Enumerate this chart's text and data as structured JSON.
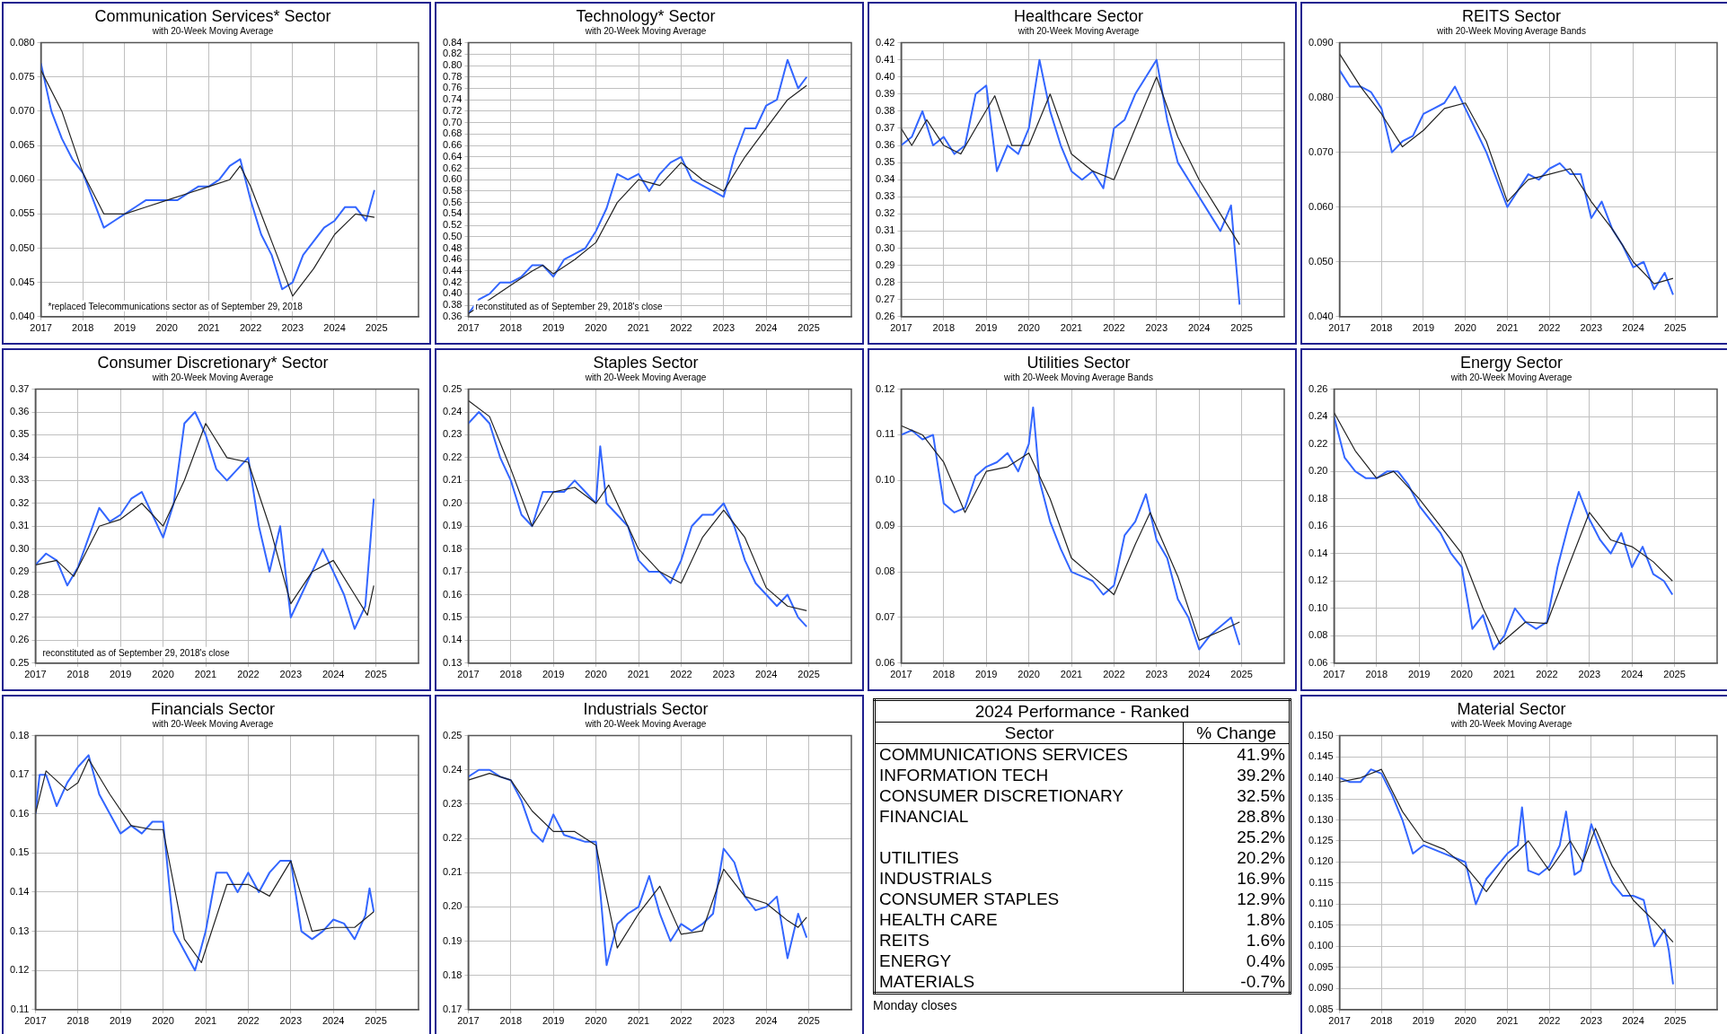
{
  "chart_data": [
    {
      "type": "line",
      "title": "Communication Services* Sector",
      "subtitle": "with 20-Week Moving Average",
      "xlim": [
        2017,
        2026
      ],
      "xticks": [
        2017,
        2018,
        2019,
        2020,
        2021,
        2022,
        2023,
        2024,
        2025
      ],
      "ylim": [
        0.04,
        0.08
      ],
      "yticks": [
        {
          "value": 0.04,
          "label": "0.040"
        },
        0.045,
        {
          "value": 0.05,
          "label": "0.050"
        },
        0.055,
        {
          "value": 0.06,
          "label": "0.060"
        },
        0.065,
        {
          "value": 0.07,
          "label": "0.070"
        },
        0.075,
        {
          "value": 0.08,
          "label": "0.080"
        }
      ],
      "grid": true,
      "marker": "none",
      "annotations": [
        "*replaced Telecommunications sector as of September 29, 2018"
      ],
      "series": [
        {
          "color": "#3366ff",
          "x": [
            2017,
            2017.25,
            2017.5,
            2017.75,
            2018,
            2018.25,
            2018.5,
            2018.75,
            2019,
            2019.25,
            2019.5,
            2019.75,
            2020,
            2020.25,
            2020.5,
            2020.75,
            2021,
            2021.25,
            2021.5,
            2021.75,
            2022,
            2022.25,
            2022.5,
            2022.75,
            2023,
            2023.25,
            2023.5,
            2023.75,
            2024,
            2024.25,
            2024.5,
            2024.75,
            2024.95
          ],
          "values": [
            0.077,
            0.07,
            0.066,
            0.063,
            0.061,
            0.057,
            0.053,
            0.054,
            0.055,
            0.056,
            0.057,
            0.057,
            0.057,
            0.057,
            0.058,
            0.059,
            0.059,
            0.06,
            0.062,
            0.063,
            0.057,
            0.052,
            0.049,
            0.044,
            0.045,
            0.049,
            0.051,
            0.053,
            0.054,
            0.056,
            0.056,
            0.054,
            0.0585
          ]
        },
        {
          "color": "#222222",
          "x": [
            2017,
            2017.5,
            2018,
            2018.5,
            2019,
            2019.5,
            2020,
            2020.5,
            2021,
            2021.5,
            2021.75,
            2022,
            2022.5,
            2023,
            2023.5,
            2024,
            2024.5,
            2024.95
          ],
          "values": [
            0.076,
            0.07,
            0.061,
            0.055,
            0.055,
            0.056,
            0.057,
            0.058,
            0.059,
            0.06,
            0.062,
            0.059,
            0.051,
            0.043,
            0.047,
            0.052,
            0.055,
            0.0545
          ]
        }
      ]
    },
    {
      "type": "line",
      "title": "Technology* Sector",
      "subtitle": "with 20-Week Moving Average",
      "xlim": [
        2017,
        2026
      ],
      "xticks": [
        2017,
        2018,
        2019,
        2020,
        2021,
        2022,
        2023,
        2024,
        2025
      ],
      "ylim": [
        0.36,
        0.84
      ],
      "yticks": [
        0.36,
        0.38,
        {
          "value": 0.4,
          "label": "0.40"
        },
        0.42,
        0.44,
        0.46,
        0.48,
        {
          "value": 0.5,
          "label": "0.50"
        },
        0.52,
        0.54,
        0.56,
        0.58,
        {
          "value": 0.6,
          "label": "0.60"
        },
        0.62,
        0.64,
        0.66,
        0.68,
        {
          "value": 0.7,
          "label": "0.70"
        },
        0.72,
        0.74,
        0.76,
        0.78,
        {
          "value": 0.8,
          "label": "0.80"
        },
        0.82,
        0.84
      ],
      "grid": true,
      "marker": "none",
      "annotations": [
        "reconstituted as of September 29, 2018's close"
      ],
      "series": [
        {
          "color": "#3366ff",
          "x": [
            2017,
            2017.25,
            2017.5,
            2017.75,
            2018,
            2018.25,
            2018.5,
            2018.75,
            2019,
            2019.25,
            2019.5,
            2019.75,
            2020,
            2020.25,
            2020.5,
            2020.75,
            2021,
            2021.25,
            2021.5,
            2021.75,
            2022,
            2022.25,
            2022.5,
            2022.75,
            2023,
            2023.25,
            2023.5,
            2023.75,
            2024,
            2024.25,
            2024.5,
            2024.75,
            2024.95
          ],
          "values": [
            0.365,
            0.39,
            0.4,
            0.42,
            0.42,
            0.43,
            0.45,
            0.45,
            0.43,
            0.46,
            0.47,
            0.48,
            0.51,
            0.55,
            0.61,
            0.6,
            0.61,
            0.58,
            0.61,
            0.63,
            0.64,
            0.6,
            0.59,
            0.58,
            0.57,
            0.64,
            0.69,
            0.69,
            0.73,
            0.74,
            0.81,
            0.76,
            0.78
          ]
        },
        {
          "color": "#222222",
          "x": [
            2017,
            2017.5,
            2018,
            2018.5,
            2018.75,
            2019,
            2019.5,
            2020,
            2020.5,
            2021,
            2021.5,
            2022,
            2022.5,
            2023,
            2023.5,
            2024,
            2024.5,
            2024.95
          ],
          "values": [
            0.365,
            0.39,
            0.415,
            0.44,
            0.45,
            0.435,
            0.46,
            0.49,
            0.56,
            0.6,
            0.59,
            0.63,
            0.6,
            0.58,
            0.64,
            0.69,
            0.74,
            0.765
          ]
        }
      ]
    },
    {
      "type": "line",
      "title": "Healthcare Sector",
      "subtitle": "with 20-Week Moving Average",
      "xlim": [
        2017,
        2026
      ],
      "xticks": [
        2017,
        2018,
        2019,
        2020,
        2021,
        2022,
        2023,
        2024,
        2025
      ],
      "ylim": [
        0.26,
        0.42
      ],
      "yticks": [
        0.26,
        0.27,
        0.28,
        0.29,
        {
          "value": 0.3,
          "label": "0.30"
        },
        0.31,
        0.32,
        0.33,
        0.34,
        0.35,
        0.36,
        0.37,
        0.38,
        0.39,
        {
          "value": 0.4,
          "label": "0.40"
        },
        0.41,
        0.42
      ],
      "grid": true,
      "marker": "none",
      "series": [
        {
          "color": "#3366ff",
          "x": [
            2017,
            2017.25,
            2017.5,
            2017.75,
            2018,
            2018.25,
            2018.5,
            2018.75,
            2019,
            2019.25,
            2019.5,
            2019.75,
            2020,
            2020.25,
            2020.5,
            2020.75,
            2021,
            2021.25,
            2021.5,
            2021.75,
            2022,
            2022.25,
            2022.5,
            2022.75,
            2023,
            2023.25,
            2023.5,
            2023.75,
            2024,
            2024.25,
            2024.5,
            2024.75,
            2024.95
          ],
          "values": [
            0.36,
            0.365,
            0.38,
            0.36,
            0.365,
            0.355,
            0.36,
            0.39,
            0.395,
            0.345,
            0.36,
            0.355,
            0.37,
            0.41,
            0.38,
            0.36,
            0.345,
            0.34,
            0.345,
            0.335,
            0.37,
            0.375,
            0.39,
            0.4,
            0.41,
            0.375,
            0.35,
            0.34,
            0.33,
            0.32,
            0.31,
            0.325,
            0.267
          ]
        },
        {
          "color": "#222222",
          "x": [
            2017,
            2017.25,
            2017.6,
            2018,
            2018.4,
            2018.75,
            2019.2,
            2019.6,
            2020,
            2020.5,
            2021,
            2021.5,
            2022,
            2022.5,
            2023,
            2023.5,
            2024,
            2024.5,
            2024.95
          ],
          "values": [
            0.37,
            0.36,
            0.375,
            0.36,
            0.355,
            0.37,
            0.389,
            0.36,
            0.36,
            0.39,
            0.355,
            0.345,
            0.34,
            0.37,
            0.4,
            0.365,
            0.34,
            0.32,
            0.302
          ]
        }
      ]
    },
    {
      "type": "line",
      "title": "REITS Sector",
      "subtitle": "with 20-Week Moving Average Bands",
      "xlim": [
        2017,
        2026
      ],
      "xticks": [
        2017,
        2018,
        2019,
        2020,
        2021,
        2022,
        2023,
        2024,
        2025
      ],
      "ylim": [
        0.04,
        0.09
      ],
      "yticks": [
        {
          "value": 0.04,
          "label": "0.040"
        },
        {
          "value": 0.05,
          "label": "0.050"
        },
        {
          "value": 0.06,
          "label": "0.060"
        },
        {
          "value": 0.07,
          "label": "0.070"
        },
        {
          "value": 0.08,
          "label": "0.080"
        },
        {
          "value": 0.09,
          "label": "0.090"
        }
      ],
      "grid": true,
      "marker": "none",
      "series": [
        {
          "color": "#3366ff",
          "x": [
            2017,
            2017.25,
            2017.5,
            2017.75,
            2018,
            2018.25,
            2018.5,
            2018.75,
            2019,
            2019.25,
            2019.5,
            2019.75,
            2020,
            2020.25,
            2020.5,
            2020.75,
            2021,
            2021.25,
            2021.5,
            2021.75,
            2022,
            2022.25,
            2022.5,
            2022.75,
            2023,
            2023.25,
            2023.5,
            2023.75,
            2024,
            2024.25,
            2024.5,
            2024.75,
            2024.95
          ],
          "values": [
            0.085,
            0.082,
            0.082,
            0.081,
            0.078,
            0.07,
            0.072,
            0.073,
            0.077,
            0.078,
            0.079,
            0.082,
            0.078,
            0.074,
            0.07,
            0.065,
            0.06,
            0.063,
            0.066,
            0.065,
            0.067,
            0.068,
            0.066,
            0.066,
            0.058,
            0.061,
            0.056,
            0.053,
            0.049,
            0.05,
            0.045,
            0.048,
            0.044
          ]
        },
        {
          "color": "#222222",
          "x": [
            2017,
            2017.5,
            2018,
            2018.5,
            2019,
            2019.5,
            2020,
            2020.5,
            2021,
            2021.5,
            2022,
            2022.5,
            2023,
            2023.5,
            2024,
            2024.5,
            2024.95
          ],
          "values": [
            0.088,
            0.082,
            0.077,
            0.071,
            0.074,
            0.078,
            0.079,
            0.072,
            0.061,
            0.065,
            0.066,
            0.067,
            0.061,
            0.056,
            0.05,
            0.046,
            0.047
          ]
        }
      ]
    },
    {
      "type": "line",
      "title": "Consumer Discretionary* Sector",
      "subtitle": "with 20-Week Moving Average",
      "xlim": [
        2017,
        2026
      ],
      "xticks": [
        2017,
        2018,
        2019,
        2020,
        2021,
        2022,
        2023,
        2024,
        2025
      ],
      "ylim": [
        0.25,
        0.37
      ],
      "yticks": [
        0.25,
        0.26,
        0.27,
        0.28,
        0.29,
        {
          "value": 0.3,
          "label": "0.30"
        },
        0.31,
        0.32,
        0.33,
        0.34,
        0.35,
        0.36,
        0.37
      ],
      "grid": true,
      "marker": "none",
      "annotations": [
        "reconstituted as of September 29, 2018's close"
      ],
      "series": [
        {
          "color": "#3366ff",
          "x": [
            2017,
            2017.25,
            2017.5,
            2017.75,
            2018,
            2018.25,
            2018.5,
            2018.75,
            2019,
            2019.25,
            2019.5,
            2019.75,
            2020,
            2020.25,
            2020.5,
            2020.75,
            2021,
            2021.25,
            2021.5,
            2021.75,
            2022,
            2022.25,
            2022.5,
            2022.75,
            2023,
            2023.25,
            2023.5,
            2023.75,
            2024,
            2024.25,
            2024.5,
            2024.75,
            2024.95
          ],
          "values": [
            0.293,
            0.298,
            0.295,
            0.284,
            0.292,
            0.305,
            0.318,
            0.312,
            0.315,
            0.322,
            0.325,
            0.315,
            0.305,
            0.32,
            0.355,
            0.36,
            0.35,
            0.335,
            0.33,
            0.335,
            0.34,
            0.31,
            0.29,
            0.31,
            0.27,
            0.28,
            0.29,
            0.3,
            0.29,
            0.28,
            0.265,
            0.275,
            0.322
          ]
        },
        {
          "color": "#222222",
          "x": [
            2017,
            2017.5,
            2017.9,
            2018.5,
            2019,
            2019.5,
            2020,
            2020.5,
            2021,
            2021.5,
            2022,
            2022.5,
            2023,
            2023.5,
            2024,
            2024.5,
            2024.8,
            2024.95
          ],
          "values": [
            0.293,
            0.295,
            0.288,
            0.31,
            0.313,
            0.32,
            0.31,
            0.33,
            0.355,
            0.34,
            0.338,
            0.31,
            0.276,
            0.29,
            0.295,
            0.28,
            0.271,
            0.284
          ]
        }
      ]
    },
    {
      "type": "line",
      "title": "Staples Sector",
      "subtitle": "with 20-Week Moving Average",
      "xlim": [
        2017,
        2026
      ],
      "xticks": [
        2017,
        2018,
        2019,
        2020,
        2021,
        2022,
        2023,
        2024,
        2025
      ],
      "ylim": [
        0.13,
        0.25
      ],
      "yticks": [
        0.13,
        0.14,
        0.15,
        0.16,
        0.17,
        0.18,
        0.19,
        {
          "value": 0.2,
          "label": "0.20"
        },
        0.21,
        0.22,
        0.23,
        0.24,
        0.25
      ],
      "grid": true,
      "marker": "none",
      "series": [
        {
          "color": "#3366ff",
          "x": [
            2017,
            2017.25,
            2017.5,
            2017.75,
            2018,
            2018.25,
            2018.5,
            2018.75,
            2019,
            2019.25,
            2019.5,
            2019.75,
            2020,
            2020.1,
            2020.25,
            2020.5,
            2020.75,
            2021,
            2021.25,
            2021.5,
            2021.75,
            2022,
            2022.25,
            2022.5,
            2022.75,
            2023,
            2023.25,
            2023.5,
            2023.75,
            2024,
            2024.25,
            2024.5,
            2024.75,
            2024.95
          ],
          "values": [
            0.235,
            0.24,
            0.235,
            0.22,
            0.21,
            0.195,
            0.19,
            0.205,
            0.205,
            0.205,
            0.21,
            0.205,
            0.2,
            0.225,
            0.2,
            0.195,
            0.19,
            0.175,
            0.17,
            0.17,
            0.165,
            0.175,
            0.19,
            0.195,
            0.195,
            0.2,
            0.19,
            0.175,
            0.165,
            0.16,
            0.155,
            0.16,
            0.15,
            0.146
          ]
        },
        {
          "color": "#222222",
          "x": [
            2017,
            2017.5,
            2018,
            2018.5,
            2019,
            2019.5,
            2020,
            2020.3,
            2021,
            2021.5,
            2022,
            2022.5,
            2023,
            2023.5,
            2024,
            2024.5,
            2024.95
          ],
          "values": [
            0.245,
            0.238,
            0.215,
            0.19,
            0.205,
            0.207,
            0.2,
            0.208,
            0.18,
            0.17,
            0.165,
            0.185,
            0.197,
            0.185,
            0.163,
            0.155,
            0.153
          ]
        }
      ]
    },
    {
      "type": "line",
      "title": "Utilities Sector",
      "subtitle": "with 20-Week Moving Average Bands",
      "xlim": [
        2017,
        2026
      ],
      "xticks": [
        2017,
        2018,
        2019,
        2020,
        2021,
        2022,
        2023,
        2024,
        2025
      ],
      "ylim": [
        0.06,
        0.12
      ],
      "yticks": [
        0.06,
        0.07,
        0.08,
        0.09,
        {
          "value": 0.1,
          "label": "0.10"
        },
        0.11,
        0.12
      ],
      "grid": true,
      "marker": "none",
      "series": [
        {
          "color": "#3366ff",
          "x": [
            2017,
            2017.25,
            2017.5,
            2017.75,
            2018,
            2018.25,
            2018.5,
            2018.75,
            2019,
            2019.25,
            2019.5,
            2019.75,
            2020,
            2020.1,
            2020.25,
            2020.5,
            2020.75,
            2021,
            2021.25,
            2021.5,
            2021.75,
            2022,
            2022.25,
            2022.5,
            2022.75,
            2023,
            2023.25,
            2023.5,
            2023.75,
            2024,
            2024.25,
            2024.5,
            2024.75,
            2024.95
          ],
          "values": [
            0.11,
            0.111,
            0.109,
            0.11,
            0.095,
            0.093,
            0.094,
            0.101,
            0.103,
            0.104,
            0.106,
            0.102,
            0.108,
            0.116,
            0.1,
            0.091,
            0.085,
            0.08,
            0.079,
            0.078,
            0.075,
            0.077,
            0.088,
            0.091,
            0.097,
            0.087,
            0.083,
            0.074,
            0.07,
            0.063,
            0.066,
            0.068,
            0.07,
            0.064
          ]
        },
        {
          "color": "#222222",
          "x": [
            2017,
            2017.5,
            2018,
            2018.5,
            2019,
            2019.5,
            2020,
            2020.5,
            2021,
            2021.5,
            2022,
            2022.5,
            2022.85,
            2023.5,
            2024,
            2024.5,
            2024.95
          ],
          "values": [
            0.112,
            0.11,
            0.104,
            0.093,
            0.102,
            0.103,
            0.106,
            0.096,
            0.083,
            0.079,
            0.075,
            0.086,
            0.093,
            0.079,
            0.065,
            0.067,
            0.069
          ]
        }
      ]
    },
    {
      "type": "line",
      "title": "Energy Sector",
      "subtitle": "with 20-Week Moving Average",
      "xlim": [
        2017,
        2026
      ],
      "xticks": [
        2017,
        2018,
        2019,
        2020,
        2021,
        2022,
        2023,
        2024,
        2025
      ],
      "ylim": [
        0.06,
        0.26
      ],
      "yticks": [
        0.06,
        0.08,
        {
          "value": 0.1,
          "label": "0.10"
        },
        0.12,
        0.14,
        0.16,
        0.18,
        {
          "value": 0.2,
          "label": "0.20"
        },
        0.22,
        0.24,
        0.26
      ],
      "grid": true,
      "marker": "none",
      "series": [
        {
          "color": "#3366ff",
          "x": [
            2017,
            2017.25,
            2017.5,
            2017.75,
            2018,
            2018.25,
            2018.5,
            2018.75,
            2019,
            2019.25,
            2019.5,
            2019.75,
            2020,
            2020.25,
            2020.5,
            2020.75,
            2021,
            2021.25,
            2021.5,
            2021.75,
            2022,
            2022.25,
            2022.5,
            2022.75,
            2023,
            2023.25,
            2023.5,
            2023.75,
            2024,
            2024.25,
            2024.5,
            2024.75,
            2024.95
          ],
          "values": [
            0.24,
            0.21,
            0.2,
            0.195,
            0.195,
            0.2,
            0.2,
            0.19,
            0.175,
            0.165,
            0.155,
            0.14,
            0.13,
            0.085,
            0.095,
            0.07,
            0.08,
            0.1,
            0.09,
            0.085,
            0.09,
            0.13,
            0.16,
            0.185,
            0.165,
            0.15,
            0.14,
            0.155,
            0.13,
            0.145,
            0.125,
            0.12,
            0.11
          ]
        },
        {
          "color": "#222222",
          "x": [
            2017,
            2017.5,
            2018,
            2018.4,
            2019,
            2019.5,
            2020,
            2020.5,
            2020.9,
            2021.5,
            2022,
            2022.5,
            2023,
            2023.5,
            2024,
            2024.5,
            2024.95
          ],
          "values": [
            0.243,
            0.215,
            0.195,
            0.2,
            0.18,
            0.16,
            0.14,
            0.1,
            0.074,
            0.09,
            0.089,
            0.13,
            0.17,
            0.15,
            0.145,
            0.134,
            0.12
          ]
        }
      ]
    },
    {
      "type": "line",
      "title": "Financials Sector",
      "subtitle": "with 20-Week Moving Average",
      "xlim": [
        2017,
        2026
      ],
      "xticks": [
        2017,
        2018,
        2019,
        2020,
        2021,
        2022,
        2023,
        2024,
        2025
      ],
      "ylim": [
        0.11,
        0.18
      ],
      "yticks": [
        0.11,
        0.12,
        0.13,
        0.14,
        0.15,
        0.16,
        0.17,
        0.18
      ],
      "grid": true,
      "marker": "none",
      "series": [
        {
          "color": "#3366ff",
          "x": [
            2017,
            2017.1,
            2017.25,
            2017.5,
            2017.75,
            2018,
            2018.25,
            2018.5,
            2018.75,
            2019,
            2019.25,
            2019.5,
            2019.75,
            2020,
            2020.25,
            2020.5,
            2020.75,
            2021,
            2021.25,
            2021.5,
            2021.75,
            2022,
            2022.25,
            2022.5,
            2022.75,
            2023,
            2023.25,
            2023.5,
            2023.75,
            2024,
            2024.25,
            2024.5,
            2024.75,
            2024.85,
            2024.95
          ],
          "values": [
            0.16,
            0.17,
            0.17,
            0.162,
            0.168,
            0.172,
            0.175,
            0.165,
            0.16,
            0.155,
            0.157,
            0.155,
            0.158,
            0.158,
            0.13,
            0.125,
            0.12,
            0.13,
            0.145,
            0.145,
            0.14,
            0.145,
            0.14,
            0.145,
            0.148,
            0.148,
            0.13,
            0.128,
            0.13,
            0.133,
            0.132,
            0.128,
            0.134,
            0.141,
            0.135
          ]
        },
        {
          "color": "#222222",
          "x": [
            2017,
            2017.25,
            2017.75,
            2018,
            2018.25,
            2018.75,
            2019.25,
            2019.75,
            2020,
            2020.5,
            2020.9,
            2021.5,
            2022,
            2022.5,
            2023,
            2023.5,
            2024,
            2024.5,
            2024.95
          ],
          "values": [
            0.16,
            0.171,
            0.166,
            0.168,
            0.174,
            0.165,
            0.157,
            0.156,
            0.156,
            0.128,
            0.122,
            0.142,
            0.142,
            0.139,
            0.148,
            0.13,
            0.131,
            0.131,
            0.135
          ]
        }
      ]
    },
    {
      "type": "line",
      "title": "Industrials Sector",
      "subtitle": "with 20-Week Moving Average",
      "xlim": [
        2017,
        2026
      ],
      "xticks": [
        2017,
        2018,
        2019,
        2020,
        2021,
        2022,
        2023,
        2024,
        2025
      ],
      "ylim": [
        0.17,
        0.25
      ],
      "yticks": [
        0.17,
        0.18,
        0.19,
        {
          "value": 0.2,
          "label": "0.20"
        },
        0.21,
        0.22,
        0.23,
        0.24,
        0.25
      ],
      "grid": true,
      "marker": "none",
      "series": [
        {
          "color": "#3366ff",
          "x": [
            2017,
            2017.25,
            2017.5,
            2017.75,
            2018,
            2018.25,
            2018.5,
            2018.75,
            2019,
            2019.25,
            2019.5,
            2019.75,
            2020,
            2020.25,
            2020.5,
            2020.75,
            2021,
            2021.25,
            2021.5,
            2021.75,
            2022,
            2022.25,
            2022.5,
            2022.75,
            2023,
            2023.25,
            2023.5,
            2023.75,
            2024,
            2024.25,
            2024.5,
            2024.75,
            2024.95
          ],
          "values": [
            0.238,
            0.24,
            0.24,
            0.238,
            0.237,
            0.231,
            0.222,
            0.219,
            0.227,
            0.221,
            0.22,
            0.219,
            0.219,
            0.183,
            0.195,
            0.198,
            0.2,
            0.209,
            0.198,
            0.19,
            0.195,
            0.193,
            0.195,
            0.198,
            0.217,
            0.213,
            0.203,
            0.199,
            0.2,
            0.203,
            0.185,
            0.198,
            0.191
          ]
        },
        {
          "color": "#222222",
          "x": [
            2017,
            2017.5,
            2018,
            2018.5,
            2019,
            2019.5,
            2020,
            2020.5,
            2021,
            2021.5,
            2022,
            2022.5,
            2023,
            2023.5,
            2024,
            2024.5,
            2024.75,
            2024.95
          ],
          "values": [
            0.237,
            0.239,
            0.237,
            0.228,
            0.222,
            0.222,
            0.218,
            0.188,
            0.198,
            0.206,
            0.192,
            0.193,
            0.211,
            0.203,
            0.201,
            0.196,
            0.194,
            0.197
          ]
        }
      ]
    },
    {
      "type": "other",
      "title": "2024 Performance - Ranked",
      "xlabel": "Sector",
      "ylabel": "% Change",
      "annotations": [
        "Monday closes"
      ],
      "categories": [
        "COMMUNICATIONS SERVICES",
        "INFORMATION TECH",
        "CONSUMER DISCRETIONARY",
        "FINANCIAL",
        null,
        "UTILITIES",
        "INDUSTRIALS",
        "CONSUMER STAPLES",
        "HEALTH CARE",
        "REITS",
        "ENERGY",
        "MATERIALS"
      ],
      "values": [
        41.9,
        39.2,
        32.5,
        28.8,
        25.2,
        20.2,
        16.9,
        12.9,
        1.8,
        1.6,
        0.4,
        -0.7
      ],
      "value_labels": [
        "41.9%",
        "39.2%",
        "32.5%",
        "28.8%",
        "25.2%",
        "20.2%",
        "16.9%",
        "12.9%",
        "1.8%",
        "1.6%",
        "0.4%",
        "-0.7%"
      ]
    },
    {
      "type": "line",
      "title": "Material Sector",
      "subtitle": "with 20-Week Moving Average",
      "xlim": [
        2017,
        2026
      ],
      "xticks": [
        2017,
        2018,
        2019,
        2020,
        2021,
        2022,
        2023,
        2024,
        2025
      ],
      "ylim": [
        0.085,
        0.15
      ],
      "yticks": [
        0.085,
        {
          "value": 0.09,
          "label": "0.090"
        },
        0.095,
        {
          "value": 0.1,
          "label": "0.100"
        },
        0.105,
        {
          "value": 0.11,
          "label": "0.110"
        },
        0.115,
        {
          "value": 0.12,
          "label": "0.120"
        },
        0.125,
        {
          "value": 0.13,
          "label": "0.130"
        },
        0.135,
        {
          "value": 0.14,
          "label": "0.140"
        },
        0.145,
        {
          "value": 0.15,
          "label": "0.150"
        }
      ],
      "grid": true,
      "marker": "none",
      "series": [
        {
          "color": "#3366ff",
          "x": [
            2017,
            2017.25,
            2017.5,
            2017.75,
            2018,
            2018.25,
            2018.5,
            2018.75,
            2019,
            2019.25,
            2019.5,
            2019.75,
            2020,
            2020.25,
            2020.5,
            2020.75,
            2021,
            2021.25,
            2021.35,
            2021.5,
            2021.75,
            2022,
            2022.25,
            2022.4,
            2022.6,
            2022.75,
            2023,
            2023.25,
            2023.5,
            2023.75,
            2024,
            2024.25,
            2024.5,
            2024.75,
            2024.85,
            2024.95
          ],
          "values": [
            0.14,
            0.139,
            0.139,
            0.142,
            0.141,
            0.136,
            0.13,
            0.122,
            0.124,
            0.123,
            0.122,
            0.121,
            0.12,
            0.11,
            0.116,
            0.119,
            0.122,
            0.124,
            0.133,
            0.118,
            0.117,
            0.119,
            0.124,
            0.132,
            0.117,
            0.118,
            0.129,
            0.122,
            0.115,
            0.112,
            0.112,
            0.111,
            0.1,
            0.104,
            0.099,
            0.091
          ]
        },
        {
          "color": "#222222",
          "x": [
            2017,
            2017.5,
            2018,
            2018.5,
            2019,
            2019.5,
            2020,
            2020.5,
            2021,
            2021.5,
            2022,
            2022.5,
            2022.8,
            2023.1,
            2023.5,
            2024,
            2024.5,
            2024.95
          ],
          "values": [
            0.139,
            0.14,
            0.142,
            0.132,
            0.125,
            0.123,
            0.119,
            0.113,
            0.12,
            0.125,
            0.118,
            0.125,
            0.12,
            0.128,
            0.119,
            0.111,
            0.106,
            0.101
          ]
        }
      ]
    }
  ]
}
